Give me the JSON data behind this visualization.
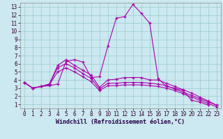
{
  "xlabel": "Windchill (Refroidissement éolien,°C)",
  "bg_color": "#cce8f0",
  "line_color": "#aa00aa",
  "grid_color": "#99cccc",
  "xlim": [
    -0.5,
    23.5
  ],
  "ylim": [
    0.5,
    13.5
  ],
  "xticks": [
    0,
    1,
    2,
    3,
    4,
    5,
    6,
    7,
    8,
    9,
    10,
    11,
    12,
    13,
    14,
    15,
    16,
    17,
    18,
    19,
    20,
    21,
    22,
    23
  ],
  "yticks": [
    1,
    2,
    3,
    4,
    5,
    6,
    7,
    8,
    9,
    10,
    11,
    12,
    13
  ],
  "series": [
    {
      "x": [
        0,
        1,
        2,
        3,
        4,
        5,
        6,
        7,
        8,
        9,
        10,
        11,
        12,
        13,
        14,
        15,
        16,
        17,
        18,
        19,
        20,
        21,
        22
      ],
      "y": [
        3.7,
        3.0,
        3.2,
        3.3,
        3.5,
        6.3,
        6.5,
        6.2,
        4.3,
        4.4,
        8.2,
        11.6,
        11.8,
        13.3,
        12.2,
        11.0,
        4.2,
        3.2,
        3.0,
        2.7,
        1.5,
        1.3,
        0.9
      ]
    },
    {
      "x": [
        0,
        1,
        2,
        3,
        4,
        5,
        6,
        7,
        8,
        9,
        10,
        11,
        12,
        13,
        14,
        15,
        16,
        17,
        18,
        19,
        20,
        21,
        22,
        23
      ],
      "y": [
        3.7,
        3.0,
        3.2,
        3.5,
        5.8,
        6.5,
        5.8,
        5.2,
        4.6,
        3.1,
        4.0,
        4.1,
        4.3,
        4.3,
        4.3,
        4.0,
        4.0,
        3.6,
        3.2,
        2.8,
        2.4,
        1.9,
        1.4,
        0.9
      ]
    },
    {
      "x": [
        0,
        1,
        2,
        3,
        4,
        5,
        6,
        7,
        8,
        9,
        10,
        11,
        12,
        13,
        14,
        15,
        16,
        17,
        18,
        19,
        20,
        21,
        22,
        23
      ],
      "y": [
        3.7,
        3.0,
        3.2,
        3.5,
        5.5,
        6.0,
        5.5,
        4.8,
        4.2,
        2.9,
        3.6,
        3.6,
        3.7,
        3.7,
        3.7,
        3.6,
        3.5,
        3.3,
        2.9,
        2.5,
        2.1,
        1.7,
        1.3,
        0.9
      ]
    },
    {
      "x": [
        0,
        1,
        2,
        3,
        4,
        5,
        6,
        7,
        8,
        9,
        10,
        11,
        12,
        13,
        14,
        15,
        16,
        17,
        18,
        19,
        20,
        21,
        22,
        23
      ],
      "y": [
        3.7,
        3.0,
        3.2,
        3.4,
        5.0,
        5.5,
        5.0,
        4.4,
        3.8,
        2.7,
        3.3,
        3.3,
        3.4,
        3.4,
        3.4,
        3.3,
        3.2,
        3.0,
        2.7,
        2.3,
        1.9,
        1.5,
        1.1,
        0.7
      ]
    }
  ]
}
